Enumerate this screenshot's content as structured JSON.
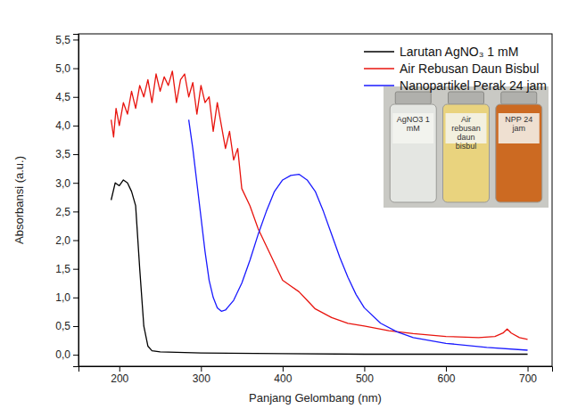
{
  "chart_data": {
    "type": "line",
    "x_label": "Panjang Gelombang (nm)",
    "y_label": "Absorbansi (a.u.)",
    "xlim": [
      150,
      730
    ],
    "xticks": [
      200,
      300,
      400,
      500,
      600,
      700
    ],
    "ylim": [
      -0.2,
      5.6
    ],
    "yticks": [
      {
        "value": 0,
        "label": "0,0"
      },
      {
        "value": 0.5,
        "label": "0,5"
      },
      {
        "value": 1,
        "label": "1,0"
      },
      {
        "value": 1.5,
        "label": "1,5"
      },
      {
        "value": 2,
        "label": "2,0"
      },
      {
        "value": 2.5,
        "label": "2,5"
      },
      {
        "value": 3,
        "label": "3,0"
      },
      {
        "value": 3.5,
        "label": "3,5"
      },
      {
        "value": 4,
        "label": "4,0"
      },
      {
        "value": 4.5,
        "label": "4,5"
      },
      {
        "value": 5,
        "label": "5,0"
      },
      {
        "value": 5.5,
        "label": "5,5"
      }
    ],
    "legend": "upper right",
    "annotations": [
      "AgNO3 1 mM",
      "Air rebusan daun bisbul",
      "NPP 24 jam"
    ],
    "series": [
      {
        "name": "Larutan AgNO₃ 1 mM",
        "color": "#000000",
        "x": [
          190,
          195,
          200,
          205,
          210,
          215,
          220,
          225,
          230,
          235,
          240,
          250,
          300,
          400,
          500,
          600,
          700
        ],
        "values": [
          2.7,
          3.0,
          2.95,
          3.05,
          3.0,
          2.85,
          2.6,
          1.5,
          0.5,
          0.15,
          0.07,
          0.05,
          0.03,
          0.02,
          0.01,
          0.01,
          0.01
        ]
      },
      {
        "name": "Air Rebusan Daun Bisbul",
        "color": "#e8140e",
        "x": [
          190,
          193,
          196,
          200,
          205,
          210,
          215,
          220,
          225,
          230,
          235,
          240,
          245,
          250,
          255,
          260,
          265,
          270,
          275,
          280,
          285,
          290,
          295,
          300,
          305,
          310,
          315,
          320,
          325,
          330,
          335,
          340,
          345,
          350,
          360,
          370,
          380,
          390,
          400,
          410,
          420,
          430,
          440,
          460,
          480,
          500,
          530,
          560,
          600,
          640,
          660,
          670,
          675,
          680,
          690,
          700
        ],
        "values": [
          4.1,
          3.8,
          4.3,
          4.0,
          4.4,
          4.2,
          4.6,
          4.3,
          4.7,
          4.5,
          4.8,
          4.4,
          4.9,
          4.6,
          4.85,
          4.7,
          4.95,
          4.4,
          4.8,
          4.9,
          4.5,
          4.75,
          4.2,
          4.7,
          4.4,
          4.5,
          3.9,
          4.4,
          4.0,
          3.6,
          3.9,
          3.4,
          3.6,
          2.9,
          2.6,
          2.2,
          1.9,
          1.6,
          1.3,
          1.2,
          1.1,
          0.95,
          0.8,
          0.65,
          0.55,
          0.5,
          0.42,
          0.37,
          0.32,
          0.3,
          0.32,
          0.38,
          0.45,
          0.38,
          0.3,
          0.27
        ]
      },
      {
        "name": "Nanopartikel Perak 24 jam",
        "color": "#1a1aff",
        "x": [
          285,
          290,
          295,
          300,
          305,
          310,
          315,
          320,
          325,
          330,
          340,
          350,
          360,
          370,
          380,
          390,
          400,
          410,
          420,
          430,
          440,
          450,
          460,
          470,
          480,
          490,
          500,
          520,
          540,
          560,
          600,
          650,
          700
        ],
        "values": [
          4.1,
          3.6,
          3.0,
          2.4,
          1.8,
          1.3,
          1.0,
          0.82,
          0.76,
          0.78,
          0.95,
          1.25,
          1.65,
          2.1,
          2.5,
          2.85,
          3.05,
          3.13,
          3.15,
          3.05,
          2.85,
          2.5,
          2.1,
          1.7,
          1.35,
          1.05,
          0.82,
          0.55,
          0.4,
          0.3,
          0.2,
          0.13,
          0.08
        ]
      }
    ]
  }
}
